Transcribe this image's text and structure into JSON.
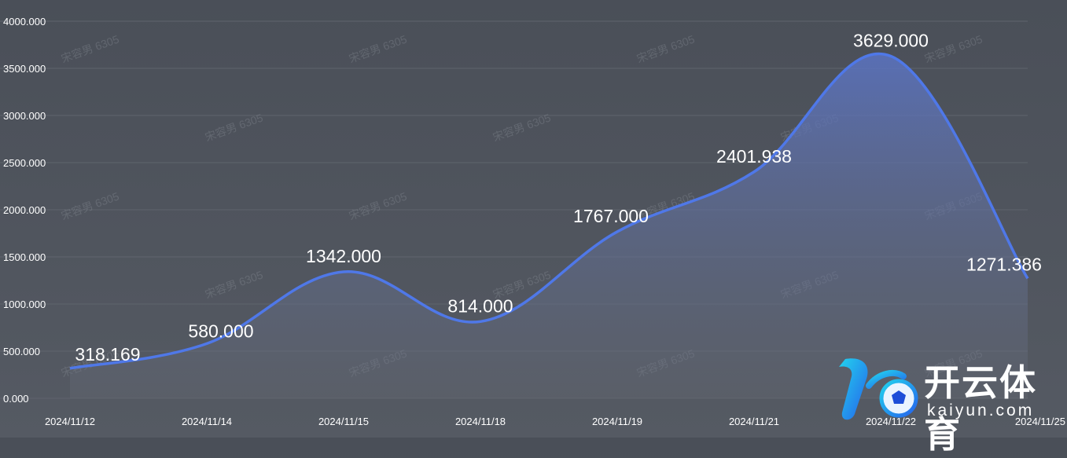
{
  "chart_data": {
    "type": "area",
    "title": "",
    "xlabel": "",
    "ylabel": "",
    "categories": [
      "2024/11/12",
      "2024/11/14",
      "2024/11/15",
      "2024/11/18",
      "2024/11/19",
      "2024/11/21",
      "2024/11/22",
      "2024/11/25"
    ],
    "values": [
      318.169,
      580.0,
      1342.0,
      814.0,
      1767.0,
      2401.938,
      3629.0,
      1271.386
    ],
    "value_labels": [
      "318.169",
      "580.000",
      "1342.000",
      "814.000",
      "1767.000",
      "2401.938",
      "3629.000",
      "1271.386"
    ],
    "ylim": [
      0,
      4000
    ],
    "yticks": [
      "0.000",
      "500.000",
      "1000.000",
      "1500.000",
      "2000.000",
      "2500.000",
      "3000.000",
      "3500.000",
      "4000.000"
    ],
    "grid": true,
    "colors": {
      "line": "#4f78e8",
      "fill": "#6b7fc4"
    }
  },
  "watermark": "宋容男 6305",
  "logo": {
    "name": "开云体育",
    "url_text": "kaiyun.com"
  }
}
